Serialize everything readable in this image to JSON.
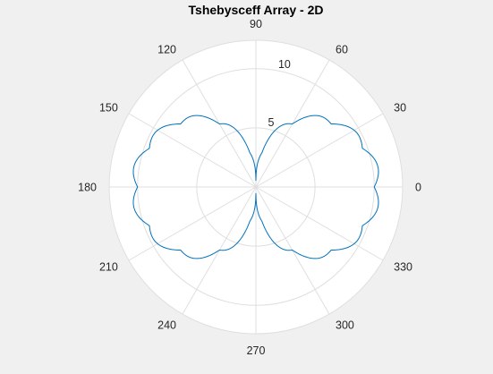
{
  "chart_data": {
    "type": "polar-line",
    "title": "Tshebysceff Array - 2D",
    "theta_ticks": [
      0,
      30,
      60,
      90,
      120,
      150,
      180,
      210,
      240,
      270,
      300,
      330
    ],
    "theta_tick_labels": [
      "0",
      "30",
      "60",
      "90",
      "120",
      "150",
      "180",
      "210",
      "240",
      "270",
      "300",
      "330"
    ],
    "r_ticks": [
      5,
      10
    ],
    "r_tick_labels": [
      "5",
      "10"
    ],
    "r_tick_label_angle_deg": 80,
    "rlim": [
      0,
      12.4
    ],
    "grid": true,
    "colors": {
      "background": "#f0f0f0",
      "axes_face": "#ffffff",
      "grid": "#dfdfdf",
      "line": "#0072bd"
    },
    "series": [
      {
        "model": "r(theta) = 10*|cos(theta)|^0.7 + 0.55*|sin(9*theta)|",
        "theta_deg_step": 1,
        "samples": [
          {
            "theta_deg": 0,
            "r": 10.0
          },
          {
            "theta_deg": 30,
            "r": 9.35
          },
          {
            "theta_deg": 45,
            "r": 8.3
          },
          {
            "theta_deg": 60,
            "r": 6.5
          },
          {
            "theta_deg": 75,
            "r": 3.9
          },
          {
            "theta_deg": 90,
            "r": 0.55
          },
          {
            "theta_deg": 105,
            "r": 3.9
          },
          {
            "theta_deg": 120,
            "r": 6.5
          },
          {
            "theta_deg": 135,
            "r": 8.3
          },
          {
            "theta_deg": 150,
            "r": 9.35
          },
          {
            "theta_deg": 180,
            "r": 10.0
          },
          {
            "theta_deg": 210,
            "r": 9.35
          },
          {
            "theta_deg": 225,
            "r": 8.3
          },
          {
            "theta_deg": 240,
            "r": 6.5
          },
          {
            "theta_deg": 255,
            "r": 3.9
          },
          {
            "theta_deg": 270,
            "r": 0.55
          },
          {
            "theta_deg": 285,
            "r": 3.9
          },
          {
            "theta_deg": 300,
            "r": 6.5
          },
          {
            "theta_deg": 315,
            "r": 8.3
          },
          {
            "theta_deg": 330,
            "r": 9.35
          }
        ]
      }
    ]
  }
}
